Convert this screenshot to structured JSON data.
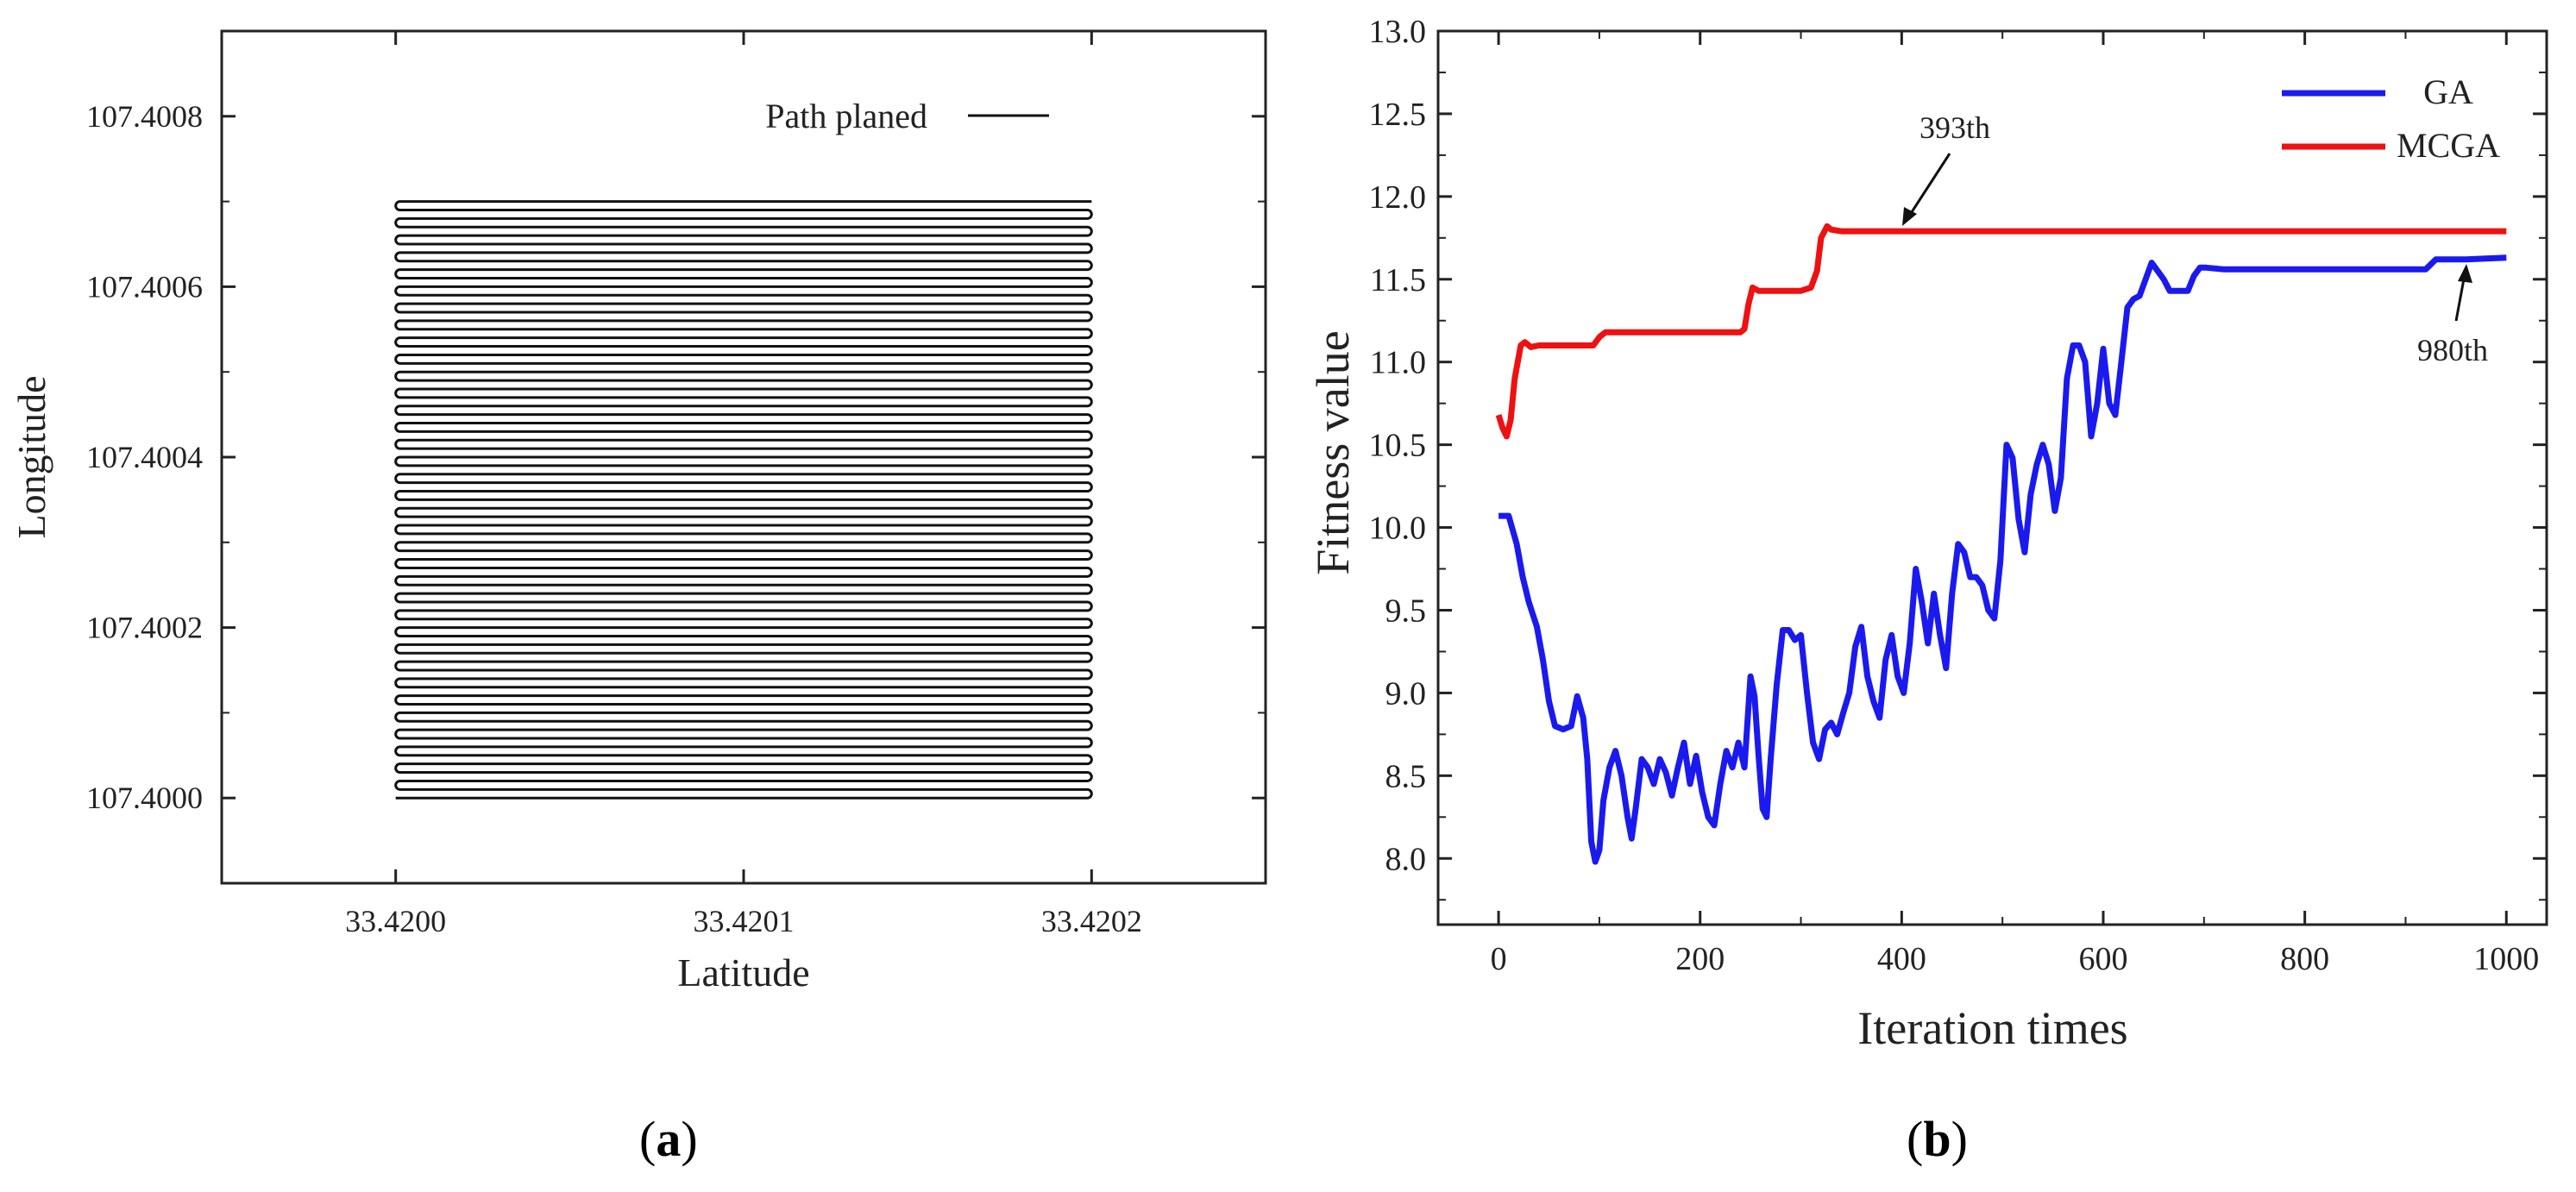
{
  "chart_data": [
    {
      "panel": "a",
      "type": "line",
      "xlabel": "Latitude",
      "ylabel": "Longitude",
      "xlim": [
        33.41995,
        33.42025
      ],
      "ylim": [
        107.3999,
        107.4009
      ],
      "x_ticks": [
        "33.4200",
        "33.4201",
        "33.4202"
      ],
      "y_ticks": [
        "107.4000",
        "107.4002",
        "107.4004",
        "107.4006",
        "107.4008"
      ],
      "grid": false,
      "legend": {
        "position": "top-right",
        "entries": [
          "Path planed"
        ]
      },
      "series": [
        {
          "name": "Path planed",
          "pattern": "boustrophedon",
          "x_start": 33.42,
          "x_end": 33.4202,
          "y_start": 107.4,
          "y_end": 107.4007,
          "passes": 71,
          "color": "#111111"
        }
      ]
    },
    {
      "panel": "b",
      "type": "line",
      "xlabel": "Iteration times",
      "ylabel": "Fitness value",
      "xlim": [
        -60,
        1040
      ],
      "ylim": [
        7.6,
        13.0
      ],
      "x_ticks": [
        "0",
        "200",
        "400",
        "600",
        "800",
        "1000"
      ],
      "y_ticks": [
        "8.0",
        "8.5",
        "9.0",
        "9.5",
        "10.0",
        "10.5",
        "11.0",
        "11.5",
        "12.0",
        "12.5",
        "13.0"
      ],
      "grid": false,
      "legend": {
        "position": "top-right",
        "entries": [
          "GA",
          "MCGA"
        ]
      },
      "annotations": [
        {
          "text": "393th",
          "x": 393,
          "y": 11.8
        },
        {
          "text": "980th",
          "x": 980,
          "y": 11.63
        }
      ],
      "series": [
        {
          "name": "GA",
          "color": "#1a1aee",
          "points": [
            [
              0,
              10.07
            ],
            [
              10,
              10.07
            ],
            [
              18,
              9.9
            ],
            [
              24,
              9.7
            ],
            [
              30,
              9.55
            ],
            [
              38,
              9.4
            ],
            [
              44,
              9.2
            ],
            [
              50,
              8.95
            ],
            [
              56,
              8.8
            ],
            [
              64,
              8.78
            ],
            [
              72,
              8.8
            ],
            [
              78,
              8.98
            ],
            [
              84,
              8.85
            ],
            [
              88,
              8.6
            ],
            [
              92,
              8.1
            ],
            [
              96,
              7.98
            ],
            [
              100,
              8.05
            ],
            [
              104,
              8.35
            ],
            [
              110,
              8.55
            ],
            [
              116,
              8.65
            ],
            [
              122,
              8.5
            ],
            [
              128,
              8.25
            ],
            [
              132,
              8.12
            ],
            [
              136,
              8.3
            ],
            [
              142,
              8.6
            ],
            [
              148,
              8.55
            ],
            [
              154,
              8.45
            ],
            [
              160,
              8.6
            ],
            [
              166,
              8.52
            ],
            [
              172,
              8.38
            ],
            [
              178,
              8.55
            ],
            [
              184,
              8.7
            ],
            [
              190,
              8.45
            ],
            [
              196,
              8.62
            ],
            [
              202,
              8.4
            ],
            [
              208,
              8.25
            ],
            [
              214,
              8.2
            ],
            [
              220,
              8.45
            ],
            [
              226,
              8.65
            ],
            [
              232,
              8.55
            ],
            [
              238,
              8.7
            ],
            [
              244,
              8.55
            ],
            [
              250,
              9.1
            ],
            [
              254,
              8.98
            ],
            [
              258,
              8.62
            ],
            [
              262,
              8.3
            ],
            [
              266,
              8.25
            ],
            [
              270,
              8.6
            ],
            [
              276,
              9.05
            ],
            [
              282,
              9.38
            ],
            [
              288,
              9.38
            ],
            [
              294,
              9.32
            ],
            [
              300,
              9.35
            ],
            [
              306,
              9.0
            ],
            [
              312,
              8.7
            ],
            [
              318,
              8.6
            ],
            [
              324,
              8.78
            ],
            [
              330,
              8.82
            ],
            [
              336,
              8.75
            ],
            [
              342,
              8.88
            ],
            [
              348,
              9.0
            ],
            [
              354,
              9.28
            ],
            [
              360,
              9.4
            ],
            [
              366,
              9.1
            ],
            [
              372,
              8.95
            ],
            [
              378,
              8.85
            ],
            [
              384,
              9.2
            ],
            [
              390,
              9.35
            ],
            [
              396,
              9.1
            ],
            [
              402,
              9.0
            ],
            [
              408,
              9.3
            ],
            [
              414,
              9.75
            ],
            [
              420,
              9.55
            ],
            [
              426,
              9.3
            ],
            [
              432,
              9.6
            ],
            [
              438,
              9.35
            ],
            [
              444,
              9.15
            ],
            [
              450,
              9.6
            ],
            [
              456,
              9.9
            ],
            [
              462,
              9.85
            ],
            [
              468,
              9.7
            ],
            [
              474,
              9.7
            ],
            [
              480,
              9.65
            ],
            [
              486,
              9.5
            ],
            [
              492,
              9.45
            ],
            [
              498,
              9.8
            ],
            [
              504,
              10.5
            ],
            [
              510,
              10.42
            ],
            [
              516,
              10.05
            ],
            [
              522,
              9.85
            ],
            [
              528,
              10.2
            ],
            [
              534,
              10.38
            ],
            [
              540,
              10.5
            ],
            [
              546,
              10.38
            ],
            [
              552,
              10.1
            ],
            [
              558,
              10.3
            ],
            [
              564,
              10.9
            ],
            [
              570,
              11.1
            ],
            [
              576,
              11.1
            ],
            [
              582,
              11.0
            ],
            [
              588,
              10.55
            ],
            [
              594,
              10.75
            ],
            [
              600,
              11.08
            ],
            [
              606,
              10.75
            ],
            [
              612,
              10.68
            ],
            [
              618,
              11.0
            ],
            [
              624,
              11.33
            ],
            [
              630,
              11.38
            ],
            [
              636,
              11.4
            ],
            [
              642,
              11.5
            ],
            [
              648,
              11.6
            ],
            [
              654,
              11.55
            ],
            [
              660,
              11.5
            ],
            [
              666,
              11.43
            ],
            [
              672,
              11.43
            ],
            [
              678,
              11.43
            ],
            [
              684,
              11.43
            ],
            [
              690,
              11.52
            ],
            [
              696,
              11.57
            ],
            [
              702,
              11.57
            ],
            [
              720,
              11.56
            ],
            [
              750,
              11.56
            ],
            [
              800,
              11.56
            ],
            [
              850,
              11.56
            ],
            [
              900,
              11.56
            ],
            [
              920,
              11.56
            ],
            [
              930,
              11.62
            ],
            [
              960,
              11.62
            ],
            [
              1000,
              11.63
            ]
          ]
        },
        {
          "name": "MCGA",
          "color": "#ee1111",
          "points": [
            [
              0,
              10.68
            ],
            [
              4,
              10.6
            ],
            [
              8,
              10.55
            ],
            [
              12,
              10.65
            ],
            [
              16,
              10.9
            ],
            [
              22,
              11.1
            ],
            [
              26,
              11.12
            ],
            [
              32,
              11.09
            ],
            [
              40,
              11.1
            ],
            [
              60,
              11.1
            ],
            [
              80,
              11.1
            ],
            [
              94,
              11.1
            ],
            [
              100,
              11.15
            ],
            [
              106,
              11.18
            ],
            [
              120,
              11.18
            ],
            [
              160,
              11.18
            ],
            [
              200,
              11.18
            ],
            [
              240,
              11.18
            ],
            [
              244,
              11.2
            ],
            [
              248,
              11.35
            ],
            [
              252,
              11.45
            ],
            [
              258,
              11.43
            ],
            [
              280,
              11.43
            ],
            [
              300,
              11.43
            ],
            [
              310,
              11.45
            ],
            [
              316,
              11.55
            ],
            [
              320,
              11.75
            ],
            [
              326,
              11.82
            ],
            [
              330,
              11.8
            ],
            [
              340,
              11.79
            ],
            [
              360,
              11.79
            ],
            [
              393,
              11.79
            ],
            [
              450,
              11.79
            ],
            [
              500,
              11.79
            ],
            [
              600,
              11.79
            ],
            [
              700,
              11.79
            ],
            [
              800,
              11.79
            ],
            [
              900,
              11.79
            ],
            [
              1000,
              11.79
            ]
          ]
        }
      ]
    }
  ],
  "labels": {
    "panel_a": {
      "open": "(",
      "letter": "a",
      "close": ")"
    },
    "panel_b": {
      "open": "(",
      "letter": "b",
      "close": ")"
    }
  }
}
